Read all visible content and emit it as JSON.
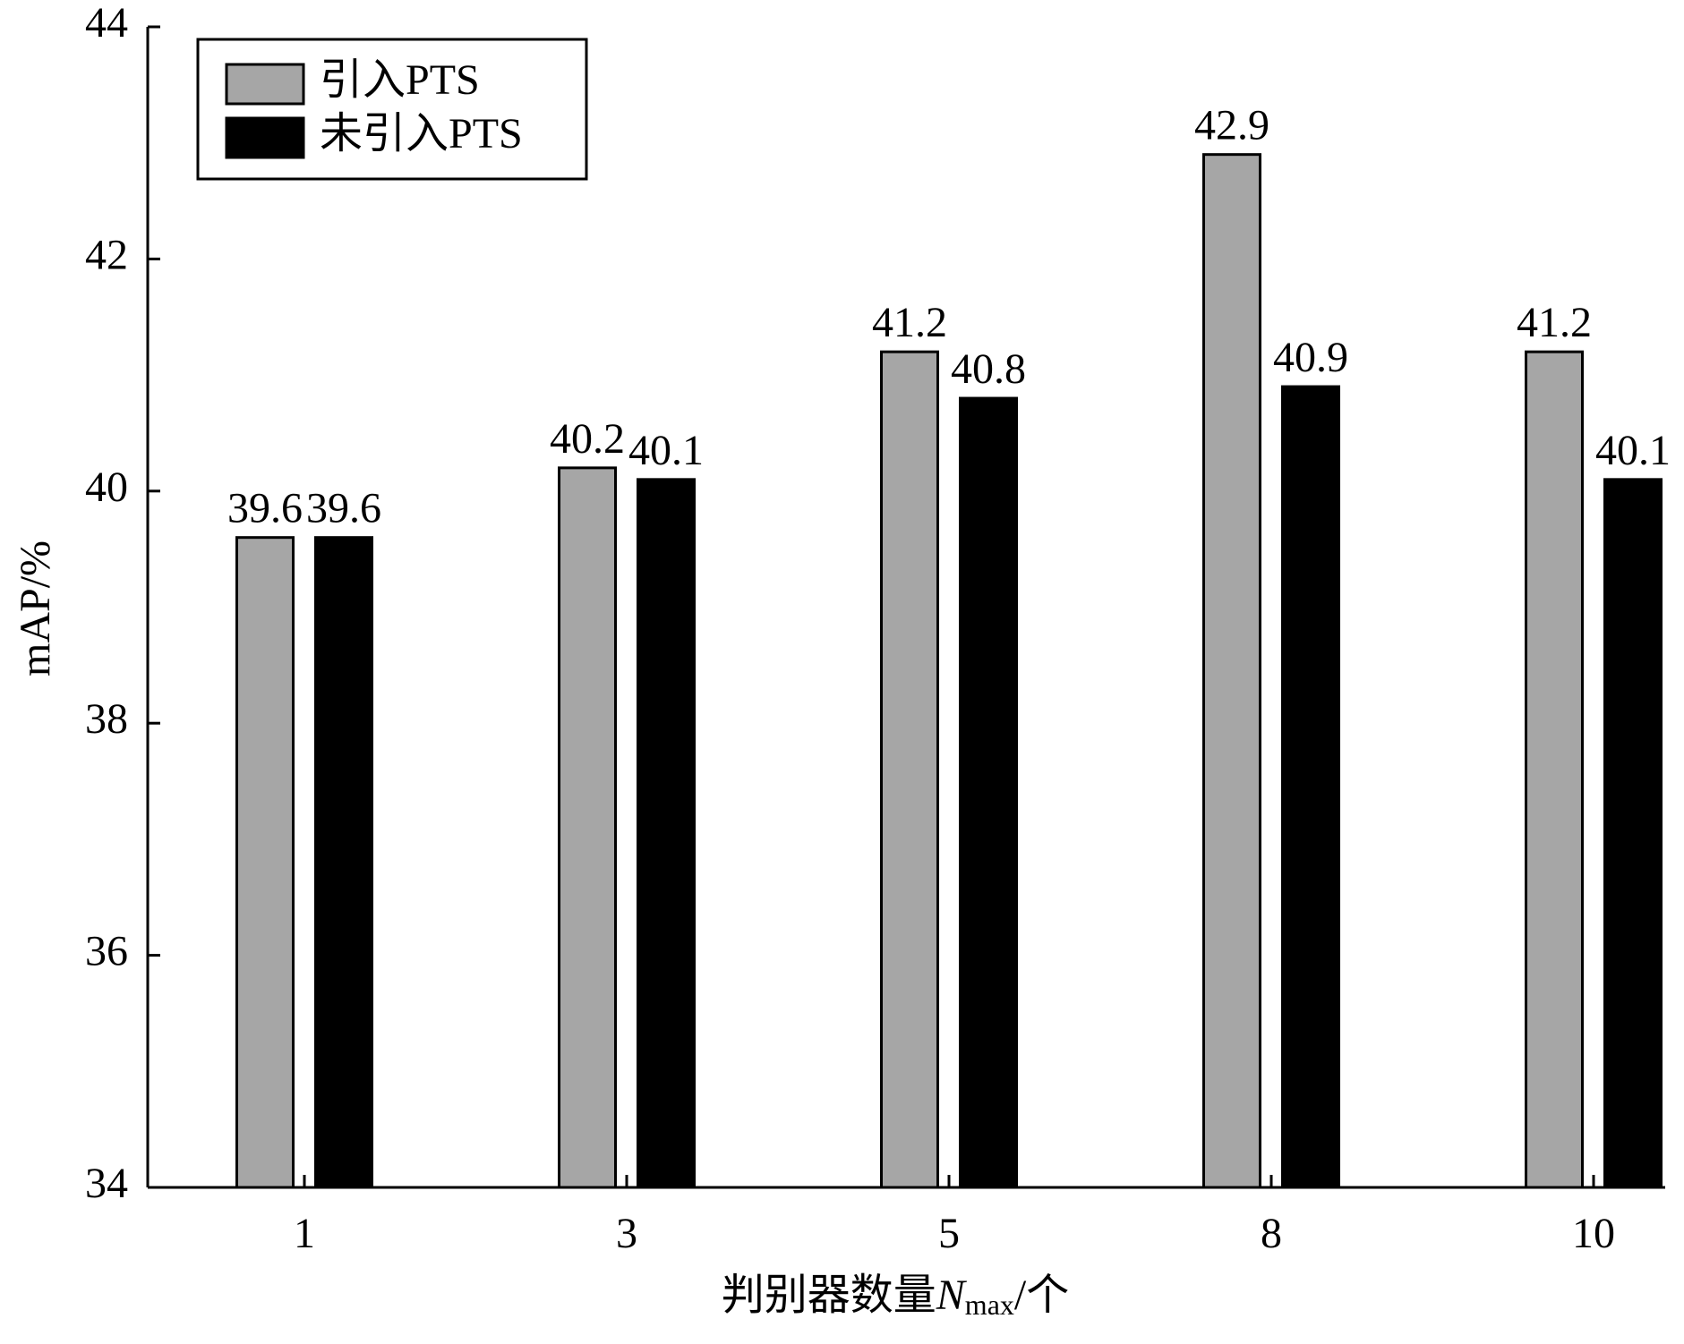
{
  "chart_data": {
    "type": "bar",
    "categories": [
      "1",
      "3",
      "5",
      "8",
      "10"
    ],
    "series": [
      {
        "name": "引入PTS",
        "color": "#a6a6a6",
        "values": [
          39.6,
          40.2,
          41.2,
          42.9,
          41.2
        ]
      },
      {
        "name": "未引入PTS",
        "color": "#000000",
        "values": [
          39.6,
          40.1,
          40.8,
          40.9,
          40.1
        ]
      }
    ],
    "ylim": [
      34,
      44
    ],
    "yticks": [
      34,
      36,
      38,
      40,
      42,
      44
    ],
    "y_label": "mAP/%",
    "x_label": {
      "prefix": "判别器数量",
      "var": "N",
      "sub": "max",
      "suffix": "/个"
    },
    "legend": "upper left"
  }
}
